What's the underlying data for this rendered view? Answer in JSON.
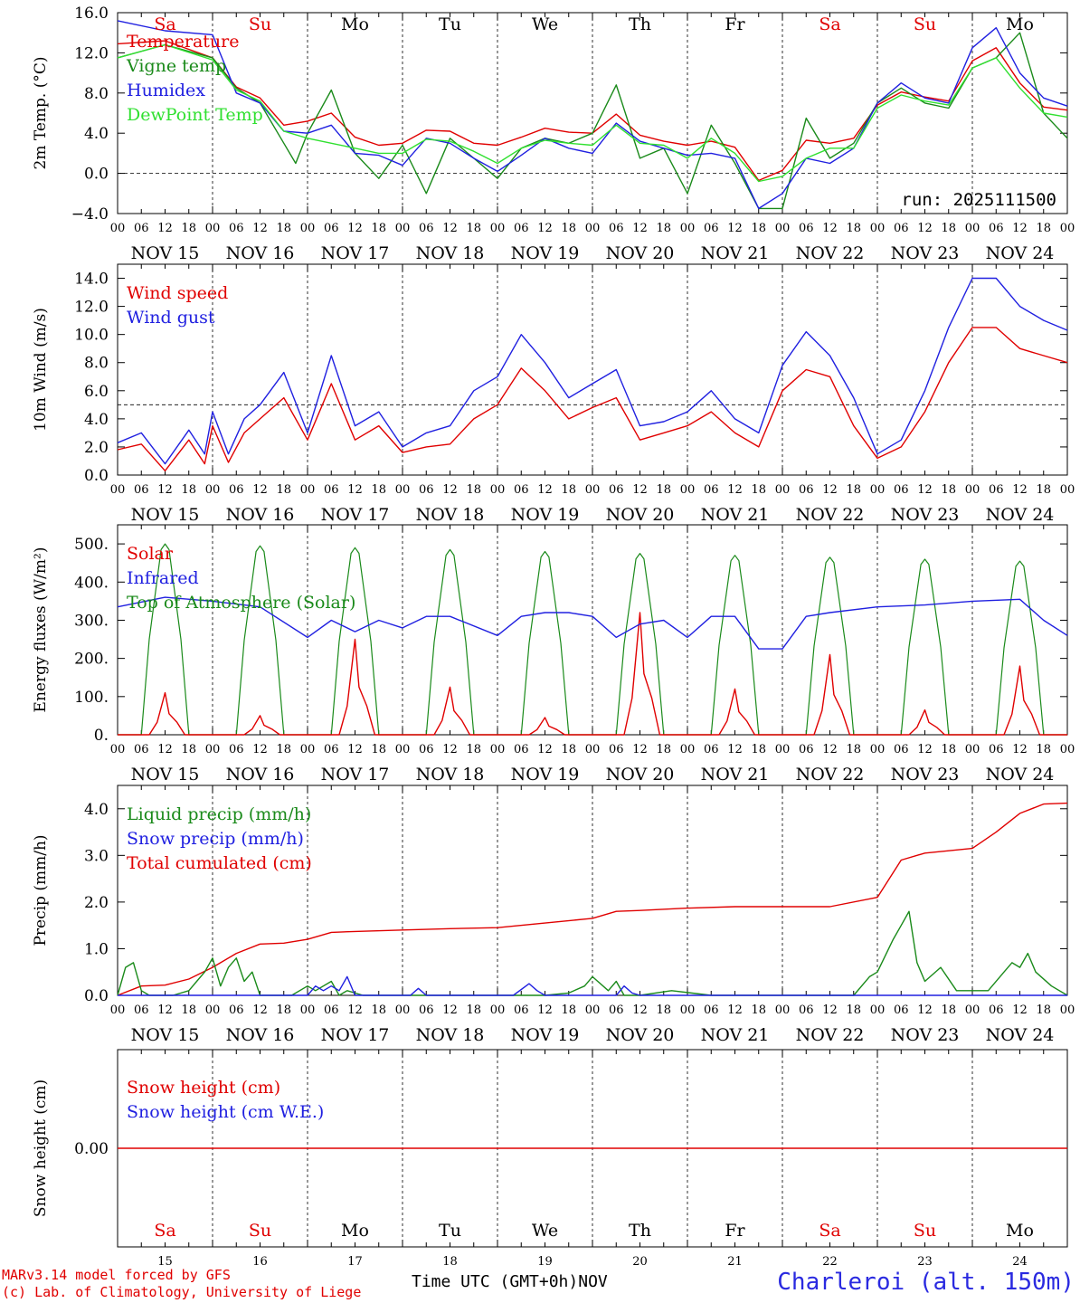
{
  "footer": {
    "model": "MARv3.14 model forced by GFS",
    "lab": "(c) Lab. of Climatology, University of Liege",
    "time_label": "Time UTC (GMT+0h)",
    "month": "NOV",
    "station": "Charleroi (alt. 150m)"
  },
  "run_label": "run: 2025111500",
  "colors": {
    "red": "#e00000",
    "green": "#1a8a1a",
    "blue": "#2020e0",
    "lightgreen": "#30e030",
    "black": "#000000"
  },
  "day_labels": [
    {
      "name": "Sa",
      "weekend": true
    },
    {
      "name": "Su",
      "weekend": true
    },
    {
      "name": "Mo",
      "weekend": false
    },
    {
      "name": "Tu",
      "weekend": false
    },
    {
      "name": "We",
      "weekend": false
    },
    {
      "name": "Th",
      "weekend": false
    },
    {
      "name": "Fr",
      "weekend": false
    },
    {
      "name": "Sa",
      "weekend": true
    },
    {
      "name": "Su",
      "weekend": true
    },
    {
      "name": "Mo",
      "weekend": false
    }
  ],
  "date_labels": [
    "NOV 15",
    "NOV 16",
    "NOV 17",
    "NOV 18",
    "NOV 19",
    "NOV 20",
    "NOV 21",
    "NOV 22",
    "NOV 23",
    "NOV 24"
  ],
  "day_numbers": [
    "15",
    "16",
    "17",
    "18",
    "19",
    "20",
    "21",
    "22",
    "23",
    "24"
  ],
  "hour_ticks": [
    "00",
    "06",
    "12",
    "18"
  ],
  "final_tick": "00",
  "chart_data": [
    {
      "type": "line",
      "ylabel": "2m Temp. (°C)",
      "ylim": [
        -4,
        16
      ],
      "yticks": [
        -4,
        0,
        4,
        8,
        12,
        16
      ],
      "ytick_labels": [
        "−4.0",
        "0.0",
        "4.0",
        "8.0",
        "12.0",
        "16.0"
      ],
      "ref_line": 0,
      "x_unit": "hours since NOV 15 00 UTC",
      "xlim": [
        0,
        240
      ],
      "legend": [
        "Temperature",
        "Vigne temp",
        "Humidex",
        "DewPoint Temp"
      ],
      "series": [
        {
          "name": "Temperature",
          "color": "red",
          "x": [
            0,
            12,
            24,
            30,
            36,
            42,
            48,
            54,
            60,
            66,
            72,
            78,
            84,
            90,
            96,
            102,
            108,
            114,
            120,
            126,
            132,
            138,
            144,
            150,
            156,
            162,
            168,
            174,
            180,
            186,
            192,
            198,
            204,
            210,
            216,
            222,
            228,
            234,
            240
          ],
          "values": [
            12.9,
            13.2,
            11.5,
            8.6,
            7.5,
            4.8,
            5.2,
            6.0,
            3.6,
            2.8,
            3.0,
            4.3,
            4.2,
            3.0,
            2.8,
            3.6,
            4.5,
            4.1,
            4.0,
            5.9,
            3.8,
            3.2,
            2.8,
            3.2,
            2.6,
            -0.7,
            0.3,
            3.3,
            3.0,
            3.5,
            6.8,
            8.1,
            7.6,
            7.2,
            11.2,
            12.5,
            9.0,
            6.6,
            6.3
          ]
        },
        {
          "name": "Vigne temp",
          "color": "green",
          "x": [
            0,
            12,
            24,
            30,
            36,
            42,
            45,
            48,
            54,
            60,
            66,
            72,
            78,
            84,
            90,
            96,
            102,
            108,
            114,
            120,
            126,
            132,
            138,
            144,
            150,
            156,
            162,
            168,
            174,
            180,
            186,
            192,
            198,
            204,
            210,
            216,
            222,
            228,
            234,
            240
          ],
          "values": [
            11.5,
            12.8,
            11.5,
            8.5,
            7.0,
            3.0,
            1.0,
            4.0,
            8.3,
            2.0,
            -0.5,
            2.8,
            -2.0,
            3.5,
            1.5,
            -0.5,
            2.5,
            3.5,
            3.0,
            4.0,
            8.8,
            1.5,
            2.5,
            -2.0,
            4.8,
            1.0,
            -3.5,
            -3.5,
            5.5,
            1.5,
            3.0,
            7.0,
            8.5,
            7.0,
            6.5,
            10.5,
            11.5,
            14.0,
            6.0,
            3.5
          ]
        },
        {
          "name": "Humidex",
          "color": "blue",
          "x": [
            0,
            12,
            24,
            30,
            36,
            42,
            48,
            54,
            60,
            66,
            72,
            78,
            84,
            90,
            96,
            102,
            108,
            114,
            120,
            126,
            132,
            138,
            144,
            150,
            156,
            162,
            168,
            174,
            180,
            186,
            192,
            198,
            204,
            210,
            216,
            222,
            228,
            234,
            240
          ],
          "values": [
            15.2,
            14.2,
            13.8,
            8.0,
            7.0,
            4.2,
            4.0,
            4.8,
            2.0,
            1.8,
            0.8,
            3.5,
            3.0,
            1.5,
            0.2,
            1.8,
            3.5,
            2.5,
            2.0,
            5.0,
            3.2,
            2.5,
            1.8,
            2.0,
            1.5,
            -3.5,
            -2.0,
            1.5,
            1.0,
            2.5,
            7.0,
            9.0,
            7.5,
            7.0,
            12.5,
            14.5,
            10.0,
            7.5,
            6.7
          ]
        },
        {
          "name": "DewPoint Temp",
          "color": "lightgreen",
          "x": [
            0,
            12,
            24,
            30,
            36,
            42,
            48,
            54,
            60,
            66,
            72,
            78,
            84,
            90,
            96,
            102,
            108,
            114,
            120,
            126,
            132,
            138,
            144,
            150,
            156,
            162,
            168,
            174,
            180,
            186,
            192,
            198,
            204,
            210,
            216,
            222,
            228,
            234,
            240
          ],
          "values": [
            11.5,
            12.8,
            11.3,
            8.3,
            7.2,
            4.2,
            3.5,
            3.0,
            2.5,
            2.0,
            2.0,
            3.4,
            3.2,
            2.2,
            1.0,
            2.5,
            3.3,
            3.0,
            2.8,
            4.8,
            3.0,
            2.8,
            1.5,
            3.5,
            2.0,
            -0.8,
            -0.3,
            1.5,
            2.5,
            2.5,
            6.5,
            7.8,
            7.2,
            6.8,
            10.5,
            11.5,
            8.5,
            6.0,
            5.6
          ]
        }
      ]
    },
    {
      "type": "line",
      "ylabel": "10m Wind (m/s)",
      "ylim": [
        0,
        15
      ],
      "yticks": [
        0,
        2,
        4,
        6,
        8,
        10,
        12,
        14
      ],
      "ytick_labels": [
        "0.0",
        "2.0",
        "4.0",
        "6.0",
        "8.0",
        "10.0",
        "12.0",
        "14.0"
      ],
      "ref_line": 5,
      "xlim": [
        0,
        240
      ],
      "legend": [
        "Wind speed",
        "Wind gust"
      ],
      "series": [
        {
          "name": "Wind speed",
          "color": "red",
          "x": [
            0,
            6,
            12,
            18,
            22,
            24,
            28,
            32,
            36,
            42,
            48,
            54,
            60,
            66,
            72,
            78,
            84,
            90,
            96,
            102,
            108,
            114,
            120,
            126,
            132,
            138,
            144,
            150,
            156,
            162,
            168,
            174,
            180,
            186,
            192,
            198,
            204,
            210,
            216,
            222,
            228,
            234,
            240
          ],
          "values": [
            1.8,
            2.2,
            0.3,
            2.5,
            0.8,
            3.5,
            0.9,
            3.0,
            4.0,
            5.5,
            2.5,
            6.5,
            2.5,
            3.5,
            1.6,
            2.0,
            2.2,
            4.0,
            5.0,
            7.6,
            6.0,
            4.0,
            4.8,
            5.5,
            2.5,
            3.0,
            3.5,
            4.5,
            3.0,
            2.0,
            6.0,
            7.5,
            7.0,
            3.5,
            1.2,
            2.0,
            4.5,
            8.0,
            10.5,
            10.5,
            9.0,
            8.5,
            8.0
          ]
        },
        {
          "name": "Wind gust",
          "color": "blue",
          "x": [
            0,
            6,
            12,
            18,
            22,
            24,
            28,
            32,
            36,
            42,
            48,
            54,
            60,
            66,
            72,
            78,
            84,
            90,
            96,
            102,
            108,
            114,
            120,
            126,
            132,
            138,
            144,
            150,
            156,
            162,
            168,
            174,
            180,
            186,
            192,
            198,
            204,
            210,
            216,
            222,
            228,
            234,
            240
          ],
          "values": [
            2.3,
            3.0,
            0.8,
            3.2,
            1.5,
            4.5,
            1.5,
            4.0,
            5.0,
            7.3,
            3.0,
            8.5,
            3.5,
            4.5,
            2.0,
            3.0,
            3.5,
            6.0,
            7.0,
            10.0,
            8.0,
            5.5,
            6.5,
            7.5,
            3.5,
            3.8,
            4.5,
            6.0,
            4.0,
            3.0,
            7.8,
            10.2,
            8.5,
            5.5,
            1.5,
            2.5,
            6.0,
            10.5,
            14.0,
            14.0,
            12.0,
            11.0,
            10.3
          ]
        }
      ]
    },
    {
      "type": "line",
      "ylabel": "Energy fluxes (W/m²)",
      "ylim": [
        0,
        550
      ],
      "yticks": [
        0,
        100,
        200,
        300,
        400,
        500
      ],
      "ytick_labels": [
        "0.",
        "100.",
        "200.",
        "300.",
        "400.",
        "500."
      ],
      "xlim": [
        0,
        240
      ],
      "legend": [
        "Solar",
        "Infrared",
        "Top of Atmosphere (Solar)"
      ],
      "toa_peaks": [
        500,
        495,
        490,
        485,
        480,
        475,
        470,
        465,
        460,
        455
      ],
      "solar_peaks": [
        110,
        50,
        250,
        125,
        45,
        320,
        120,
        210,
        65,
        180
      ],
      "infrared": {
        "x": [
          0,
          12,
          24,
          36,
          48,
          54,
          60,
          66,
          72,
          78,
          84,
          96,
          102,
          108,
          114,
          120,
          126,
          132,
          138,
          144,
          150,
          156,
          162,
          168,
          174,
          180,
          192,
          204,
          216,
          228,
          234,
          240
        ],
        "values": [
          335,
          360,
          350,
          335,
          255,
          300,
          270,
          300,
          280,
          310,
          310,
          260,
          310,
          320,
          320,
          310,
          255,
          290,
          300,
          255,
          310,
          310,
          225,
          225,
          310,
          320,
          335,
          340,
          350,
          355,
          300,
          260
        ]
      }
    },
    {
      "type": "line",
      "ylabel": "Precip (mm/h)",
      "ylim": [
        0,
        4.5
      ],
      "yticks": [
        0,
        1,
        2,
        3,
        4
      ],
      "ytick_labels": [
        "0.0",
        "1.0",
        "2.0",
        "3.0",
        "4.0"
      ],
      "xlim": [
        0,
        240
      ],
      "legend": [
        "Liquid precip (mm/h)",
        "Snow precip (mm/h)",
        "Total cumulated (cm)"
      ],
      "series": [
        {
          "name": "Total cumulated (cm)",
          "color": "red",
          "x": [
            0,
            6,
            12,
            18,
            24,
            30,
            36,
            42,
            48,
            54,
            60,
            72,
            84,
            96,
            108,
            120,
            126,
            132,
            144,
            156,
            168,
            180,
            192,
            198,
            204,
            210,
            216,
            222,
            228,
            234,
            240
          ],
          "values": [
            0,
            0.2,
            0.22,
            0.35,
            0.6,
            0.9,
            1.1,
            1.12,
            1.2,
            1.35,
            1.37,
            1.4,
            1.43,
            1.45,
            1.55,
            1.65,
            1.8,
            1.82,
            1.87,
            1.9,
            1.9,
            1.9,
            2.1,
            2.9,
            3.05,
            3.1,
            3.15,
            3.5,
            3.9,
            4.1,
            4.12
          ]
        },
        {
          "name": "Liquid precip (mm/h)",
          "color": "green",
          "x": [
            0,
            2,
            4,
            6,
            8,
            10,
            14,
            18,
            20,
            22,
            24,
            26,
            28,
            30,
            32,
            34,
            36,
            40,
            44,
            48,
            50,
            54,
            56,
            58,
            62,
            66,
            72,
            78,
            84,
            90,
            96,
            102,
            108,
            114,
            118,
            120,
            124,
            126,
            128,
            132,
            140,
            150,
            160,
            170,
            180,
            186,
            190,
            192,
            196,
            198,
            200,
            202,
            204,
            208,
            212,
            216,
            220,
            224,
            226,
            228,
            230,
            232,
            236,
            240
          ],
          "values": [
            0,
            0.6,
            0.7,
            0.1,
            0,
            0,
            0,
            0.1,
            0.3,
            0.5,
            0.8,
            0.2,
            0.6,
            0.8,
            0.3,
            0.5,
            0,
            0,
            0,
            0.2,
            0.1,
            0.3,
            0,
            0.1,
            0,
            0,
            0,
            0,
            0,
            0,
            0,
            0,
            0,
            0.05,
            0.2,
            0.4,
            0.1,
            0.3,
            0,
            0,
            0.1,
            0,
            0,
            0,
            0,
            0,
            0.4,
            0.5,
            1.2,
            1.5,
            1.8,
            0.7,
            0.3,
            0.6,
            0.1,
            0.1,
            0.1,
            0.5,
            0.7,
            0.6,
            0.9,
            0.5,
            0.2,
            0
          ]
        },
        {
          "name": "Snow precip (mm/h)",
          "color": "blue",
          "x": [
            0,
            48,
            50,
            52,
            54,
            56,
            58,
            60,
            74,
            76,
            78,
            100,
            104,
            106,
            108,
            120,
            126,
            128,
            130,
            132,
            240
          ],
          "values": [
            0,
            0,
            0.2,
            0.1,
            0.2,
            0.1,
            0.4,
            0,
            0,
            0.15,
            0,
            0,
            0.25,
            0.1,
            0,
            0,
            0,
            0.2,
            0.05,
            0,
            0
          ]
        }
      ]
    },
    {
      "type": "line",
      "ylabel": "Snow height (cm)",
      "ylim": [
        -1,
        1
      ],
      "yticks": [
        0
      ],
      "ytick_labels": [
        "0.00"
      ],
      "xlim": [
        0,
        240
      ],
      "legend": [
        "Snow height (cm)",
        "Snow height (cm W.E.)"
      ],
      "series": [
        {
          "name": "Snow height (cm)",
          "color": "red",
          "x": [
            0,
            240
          ],
          "values": [
            0,
            0
          ]
        }
      ]
    }
  ]
}
